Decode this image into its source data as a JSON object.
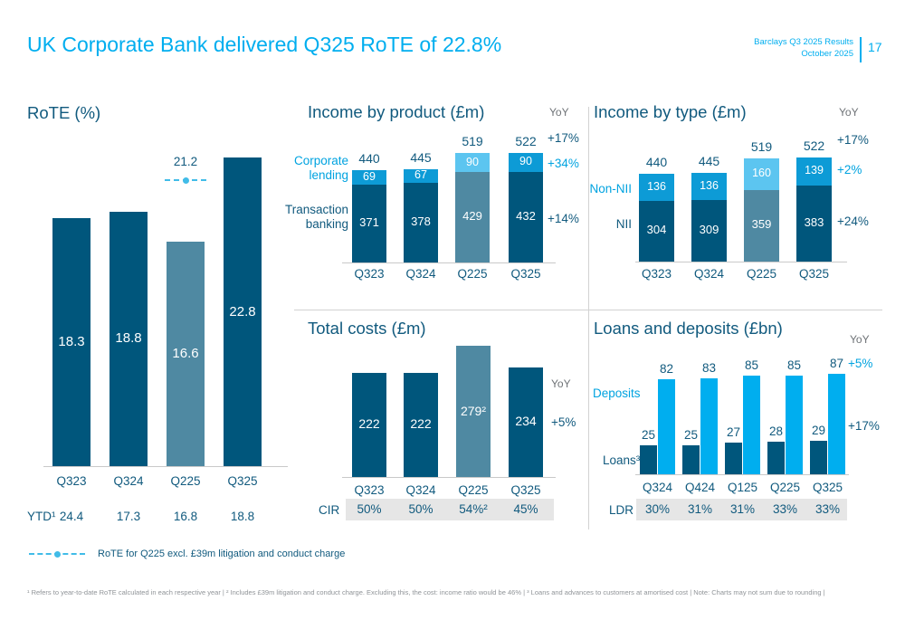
{
  "header": {
    "title": "UK Corporate Bank delivered Q325 RoTE of 22.8%",
    "meta_line1": "Barclays Q3 2025 Results",
    "meta_line2": "October 2025",
    "page_number": "17"
  },
  "colors": {
    "accent_cyan": "#00aeef",
    "cyan_text": "#00a3e0",
    "bright_blue": "#0d9bd6",
    "light_blue": "#5cc5f0",
    "dark_navy": "#00567c",
    "slate": "#4f89a2",
    "text_navy": "#115a7e",
    "muted_gray": "#6f7377",
    "band_gray": "#e6e6e6",
    "marker_cyan": "#41bce8"
  },
  "legend": {
    "marker": "dashed-line-with-dot",
    "label": "RoTE for Q225 excl. £39m litigation and conduct charge"
  },
  "footnote": {
    "text": "¹ Refers to year-to-date RoTE calculated in each respective year  |  ² Includes £39m litigation and conduct charge. Excluding this, the cost: income ratio would be 46%  |  ³ Loans and advances to customers at amortised cost  |  Note: Charts may not sum due to rounding |"
  },
  "chart_data": [
    {
      "id": "rote",
      "type": "bar",
      "title": "RoTE (%)",
      "categories": [
        "Q323",
        "Q324",
        "Q225",
        "Q325"
      ],
      "values": [
        18.3,
        18.8,
        16.6,
        22.8
      ],
      "value_labels": [
        "18.3",
        "18.8",
        "16.6",
        "22.8"
      ],
      "bar_colors": [
        "dark_navy",
        "dark_navy",
        "slate",
        "dark_navy"
      ],
      "marker": {
        "value": 21.2,
        "label": "21.2",
        "category": "Q225"
      },
      "footer_row": {
        "label": "YTD¹",
        "values": [
          "24.4",
          "17.3",
          "16.8",
          "18.8"
        ]
      },
      "ylim": [
        0,
        25
      ],
      "grid": false,
      "legend_position": "bottom"
    },
    {
      "id": "income_by_product",
      "type": "stacked-bar",
      "title": "Income by product (£m)",
      "categories": [
        "Q323",
        "Q324",
        "Q225",
        "Q325"
      ],
      "series": [
        {
          "name": "Transaction banking",
          "values": [
            371,
            378,
            429,
            432
          ],
          "colors": [
            "dark_navy",
            "dark_navy",
            "slate",
            "dark_navy"
          ]
        },
        {
          "name": "Corporate lending",
          "values": [
            69,
            67,
            90,
            90
          ],
          "colors": [
            "bright_blue",
            "bright_blue",
            "light_blue",
            "bright_blue"
          ]
        }
      ],
      "totals": [
        "440",
        "445",
        "519",
        "522"
      ],
      "yoy": {
        "header": "YoY",
        "entries": [
          {
            "label": "+17%",
            "color": "text_navy",
            "refers_to": "total"
          },
          {
            "label": "+34%",
            "color": "cyan_text",
            "refers_to": "Corporate lending"
          },
          {
            "label": "+14%",
            "color": "text_navy",
            "refers_to": "Transaction banking"
          }
        ]
      }
    },
    {
      "id": "income_by_type",
      "type": "stacked-bar",
      "title": "Income by type (£m)",
      "categories": [
        "Q323",
        "Q324",
        "Q225",
        "Q325"
      ],
      "series": [
        {
          "name": "NII",
          "values": [
            304,
            309,
            359,
            383
          ],
          "colors": [
            "dark_navy",
            "dark_navy",
            "slate",
            "dark_navy"
          ]
        },
        {
          "name": "Non-NII",
          "values": [
            136,
            136,
            160,
            139
          ],
          "colors": [
            "bright_blue",
            "bright_blue",
            "light_blue",
            "bright_blue"
          ]
        }
      ],
      "totals": [
        "440",
        "445",
        "519",
        "522"
      ],
      "yoy": {
        "header": "YoY",
        "entries": [
          {
            "label": "+17%",
            "color": "text_navy",
            "refers_to": "total"
          },
          {
            "label": "+2%",
            "color": "cyan_text",
            "refers_to": "Non-NII"
          },
          {
            "label": "+24%",
            "color": "text_navy",
            "refers_to": "NII"
          }
        ]
      }
    },
    {
      "id": "total_costs",
      "type": "bar",
      "title": "Total costs (£m)",
      "categories": [
        "Q323",
        "Q324",
        "Q225",
        "Q325"
      ],
      "values": [
        222,
        222,
        279,
        234
      ],
      "value_labels": [
        "222",
        "222",
        "279²",
        "234"
      ],
      "bar_colors": [
        "dark_navy",
        "dark_navy",
        "slate",
        "dark_navy"
      ],
      "yoy": {
        "header": "YoY",
        "entries": [
          {
            "label": "+5%",
            "color": "text_navy",
            "refers_to": "total"
          }
        ]
      },
      "footer_row": {
        "label": "CIR",
        "values": [
          "50%",
          "50%",
          "54%²",
          "45%"
        ]
      }
    },
    {
      "id": "loans_and_deposits",
      "type": "grouped-bar",
      "title": "Loans and deposits (£bn)",
      "categories": [
        "Q324",
        "Q424",
        "Q125",
        "Q225",
        "Q325"
      ],
      "series": [
        {
          "name": "Loans³",
          "values": [
            25,
            25,
            27,
            28,
            29
          ],
          "color": "dark_navy"
        },
        {
          "name": "Deposits",
          "values": [
            82,
            83,
            85,
            85,
            87
          ],
          "color": "accent_cyan"
        }
      ],
      "yoy": {
        "header": "YoY",
        "entries": [
          {
            "label": "+5%",
            "color": "cyan_text",
            "refers_to": "Deposits"
          },
          {
            "label": "+17%",
            "color": "text_navy",
            "refers_to": "Loans³"
          }
        ]
      },
      "footer_row": {
        "label": "LDR",
        "values": [
          "30%",
          "31%",
          "31%",
          "33%",
          "33%"
        ]
      }
    }
  ]
}
